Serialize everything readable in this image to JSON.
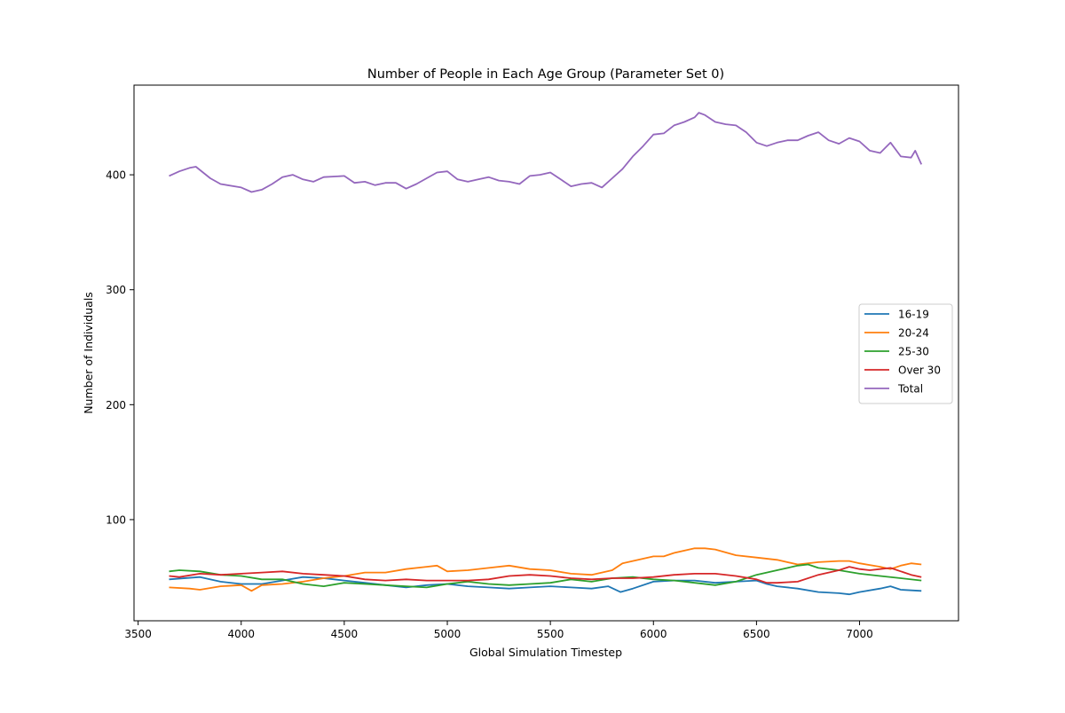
{
  "chart_data": {
    "type": "line",
    "title": "Number of People in Each Age Group (Parameter Set 0)",
    "xlabel": "Global Simulation Timestep",
    "ylabel": "Number of Individuals",
    "xlim": [
      3480,
      7480
    ],
    "ylim": [
      12,
      478
    ],
    "x_ticks": [
      3500,
      4000,
      4500,
      5000,
      5500,
      6000,
      6500,
      7000
    ],
    "y_ticks": [
      100,
      200,
      300,
      400
    ],
    "grid": false,
    "legend_position": "center-right",
    "series": [
      {
        "name": "16-19",
        "color": "#1f77b4",
        "points": [
          [
            3650,
            48
          ],
          [
            3800,
            50
          ],
          [
            3900,
            46
          ],
          [
            4000,
            44
          ],
          [
            4100,
            44
          ],
          [
            4200,
            47
          ],
          [
            4300,
            50
          ],
          [
            4400,
            49
          ],
          [
            4500,
            47
          ],
          [
            4600,
            45
          ],
          [
            4700,
            43
          ],
          [
            4800,
            41
          ],
          [
            4900,
            43
          ],
          [
            5000,
            44
          ],
          [
            5100,
            42
          ],
          [
            5200,
            41
          ],
          [
            5300,
            40
          ],
          [
            5400,
            41
          ],
          [
            5500,
            42
          ],
          [
            5600,
            41
          ],
          [
            5700,
            40
          ],
          [
            5780,
            42
          ],
          [
            5840,
            37
          ],
          [
            5900,
            40
          ],
          [
            6000,
            46
          ],
          [
            6100,
            47
          ],
          [
            6200,
            47
          ],
          [
            6300,
            45
          ],
          [
            6400,
            46
          ],
          [
            6500,
            47
          ],
          [
            6550,
            44
          ],
          [
            6600,
            42
          ],
          [
            6700,
            40
          ],
          [
            6800,
            37
          ],
          [
            6900,
            36
          ],
          [
            6950,
            35
          ],
          [
            7000,
            37
          ],
          [
            7100,
            40
          ],
          [
            7150,
            42
          ],
          [
            7200,
            39
          ],
          [
            7300,
            38
          ]
        ]
      },
      {
        "name": "20-24",
        "color": "#ff7f0e",
        "points": [
          [
            3650,
            41
          ],
          [
            3750,
            40
          ],
          [
            3800,
            39
          ],
          [
            3900,
            42
          ],
          [
            4000,
            43
          ],
          [
            4050,
            38
          ],
          [
            4100,
            43
          ],
          [
            4200,
            44
          ],
          [
            4300,
            46
          ],
          [
            4400,
            49
          ],
          [
            4500,
            51
          ],
          [
            4600,
            54
          ],
          [
            4700,
            54
          ],
          [
            4800,
            57
          ],
          [
            4900,
            59
          ],
          [
            4950,
            60
          ],
          [
            5000,
            55
          ],
          [
            5100,
            56
          ],
          [
            5200,
            58
          ],
          [
            5300,
            60
          ],
          [
            5400,
            57
          ],
          [
            5500,
            56
          ],
          [
            5600,
            53
          ],
          [
            5700,
            52
          ],
          [
            5800,
            56
          ],
          [
            5850,
            62
          ],
          [
            5900,
            64
          ],
          [
            6000,
            68
          ],
          [
            6050,
            68
          ],
          [
            6100,
            71
          ],
          [
            6200,
            75
          ],
          [
            6250,
            75
          ],
          [
            6300,
            74
          ],
          [
            6400,
            69
          ],
          [
            6500,
            67
          ],
          [
            6600,
            65
          ],
          [
            6700,
            61
          ],
          [
            6800,
            63
          ],
          [
            6900,
            64
          ],
          [
            6950,
            64
          ],
          [
            7000,
            62
          ],
          [
            7100,
            59
          ],
          [
            7150,
            57
          ],
          [
            7200,
            60
          ],
          [
            7250,
            62
          ],
          [
            7300,
            61
          ]
        ]
      },
      {
        "name": "25-30",
        "color": "#2ca02c",
        "points": [
          [
            3650,
            55
          ],
          [
            3700,
            56
          ],
          [
            3800,
            55
          ],
          [
            3900,
            52
          ],
          [
            4000,
            51
          ],
          [
            4100,
            48
          ],
          [
            4200,
            48
          ],
          [
            4300,
            44
          ],
          [
            4400,
            42
          ],
          [
            4500,
            45
          ],
          [
            4600,
            44
          ],
          [
            4700,
            43
          ],
          [
            4800,
            42
          ],
          [
            4900,
            41
          ],
          [
            5000,
            44
          ],
          [
            5100,
            46
          ],
          [
            5200,
            44
          ],
          [
            5300,
            43
          ],
          [
            5400,
            44
          ],
          [
            5500,
            45
          ],
          [
            5600,
            48
          ],
          [
            5700,
            46
          ],
          [
            5800,
            49
          ],
          [
            5900,
            50
          ],
          [
            6000,
            48
          ],
          [
            6100,
            47
          ],
          [
            6200,
            45
          ],
          [
            6300,
            43
          ],
          [
            6400,
            46
          ],
          [
            6500,
            52
          ],
          [
            6600,
            56
          ],
          [
            6700,
            60
          ],
          [
            6750,
            61
          ],
          [
            6800,
            58
          ],
          [
            6900,
            56
          ],
          [
            7000,
            53
          ],
          [
            7100,
            51
          ],
          [
            7200,
            49
          ],
          [
            7300,
            47
          ]
        ]
      },
      {
        "name": "Over 30",
        "color": "#d62728",
        "points": [
          [
            3650,
            51
          ],
          [
            3700,
            50
          ],
          [
            3800,
            53
          ],
          [
            3900,
            52
          ],
          [
            4000,
            53
          ],
          [
            4100,
            54
          ],
          [
            4200,
            55
          ],
          [
            4300,
            53
          ],
          [
            4400,
            52
          ],
          [
            4500,
            51
          ],
          [
            4600,
            48
          ],
          [
            4700,
            47
          ],
          [
            4800,
            48
          ],
          [
            4900,
            47
          ],
          [
            5000,
            47
          ],
          [
            5100,
            47
          ],
          [
            5200,
            48
          ],
          [
            5300,
            51
          ],
          [
            5400,
            52
          ],
          [
            5500,
            51
          ],
          [
            5600,
            49
          ],
          [
            5700,
            48
          ],
          [
            5800,
            49
          ],
          [
            5900,
            49
          ],
          [
            6000,
            50
          ],
          [
            6100,
            52
          ],
          [
            6200,
            53
          ],
          [
            6300,
            53
          ],
          [
            6400,
            51
          ],
          [
            6500,
            48
          ],
          [
            6550,
            45
          ],
          [
            6600,
            45
          ],
          [
            6700,
            46
          ],
          [
            6800,
            52
          ],
          [
            6900,
            56
          ],
          [
            6950,
            59
          ],
          [
            7000,
            57
          ],
          [
            7050,
            56
          ],
          [
            7100,
            57
          ],
          [
            7150,
            58
          ],
          [
            7200,
            55
          ],
          [
            7250,
            52
          ],
          [
            7300,
            50
          ]
        ]
      },
      {
        "name": "Total",
        "color": "#9467bd",
        "points": [
          [
            3650,
            399
          ],
          [
            3700,
            403
          ],
          [
            3750,
            406
          ],
          [
            3780,
            407
          ],
          [
            3850,
            397
          ],
          [
            3900,
            392
          ],
          [
            4000,
            389
          ],
          [
            4050,
            385
          ],
          [
            4100,
            387
          ],
          [
            4150,
            392
          ],
          [
            4200,
            398
          ],
          [
            4250,
            400
          ],
          [
            4300,
            396
          ],
          [
            4350,
            394
          ],
          [
            4400,
            398
          ],
          [
            4500,
            399
          ],
          [
            4550,
            393
          ],
          [
            4600,
            394
          ],
          [
            4650,
            391
          ],
          [
            4700,
            393
          ],
          [
            4750,
            393
          ],
          [
            4800,
            388
          ],
          [
            4850,
            392
          ],
          [
            4900,
            397
          ],
          [
            4950,
            402
          ],
          [
            5000,
            403
          ],
          [
            5050,
            396
          ],
          [
            5100,
            394
          ],
          [
            5150,
            396
          ],
          [
            5200,
            398
          ],
          [
            5250,
            395
          ],
          [
            5300,
            394
          ],
          [
            5350,
            392
          ],
          [
            5400,
            399
          ],
          [
            5450,
            400
          ],
          [
            5500,
            402
          ],
          [
            5550,
            396
          ],
          [
            5600,
            390
          ],
          [
            5650,
            392
          ],
          [
            5700,
            393
          ],
          [
            5750,
            389
          ],
          [
            5800,
            397
          ],
          [
            5850,
            405
          ],
          [
            5900,
            416
          ],
          [
            5950,
            425
          ],
          [
            6000,
            435
          ],
          [
            6050,
            436
          ],
          [
            6100,
            443
          ],
          [
            6150,
            446
          ],
          [
            6200,
            450
          ],
          [
            6220,
            454
          ],
          [
            6250,
            452
          ],
          [
            6300,
            446
          ],
          [
            6350,
            444
          ],
          [
            6400,
            443
          ],
          [
            6450,
            437
          ],
          [
            6500,
            428
          ],
          [
            6550,
            425
          ],
          [
            6600,
            428
          ],
          [
            6650,
            430
          ],
          [
            6700,
            430
          ],
          [
            6750,
            434
          ],
          [
            6800,
            437
          ],
          [
            6850,
            430
          ],
          [
            6900,
            427
          ],
          [
            6950,
            432
          ],
          [
            7000,
            429
          ],
          [
            7050,
            421
          ],
          [
            7100,
            419
          ],
          [
            7150,
            428
          ],
          [
            7200,
            416
          ],
          [
            7250,
            415
          ],
          [
            7270,
            421
          ],
          [
            7300,
            409
          ]
        ]
      }
    ]
  }
}
